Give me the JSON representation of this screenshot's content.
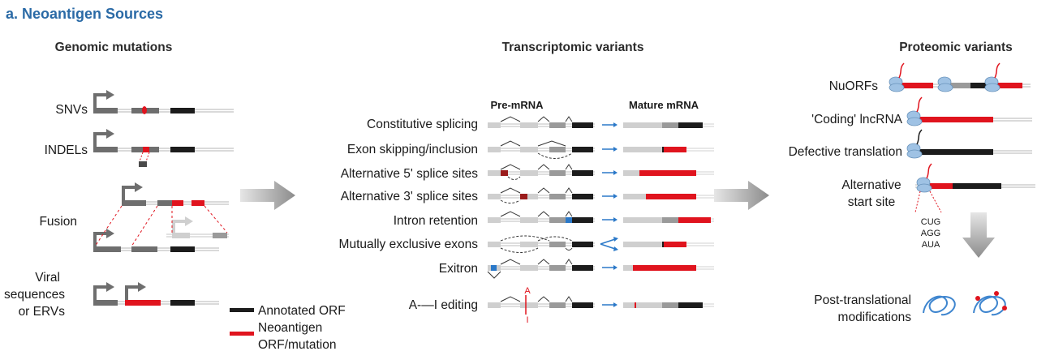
{
  "title": "a. Neoantigen Sources",
  "columns": {
    "genomic": {
      "heading": "Genomic mutations",
      "rows": [
        "SNVs",
        "INDELs",
        "Fusion",
        "Viral",
        "sequences",
        "or ERVs"
      ]
    },
    "transcriptomic": {
      "heading": "Transcriptomic variants",
      "pre_label": "Pre-mRNA",
      "mature_label": "Mature mRNA",
      "rows": [
        "Constitutive splicing",
        "Exon skipping/inclusion",
        "Alternative 5' splice sites",
        "Alternative 3' splice sites",
        "Intron retention",
        "Mutually exclusive exons",
        "Exitron",
        "A-—I editing"
      ],
      "editing_mark_top": "A",
      "editing_mark_bottom": "I"
    },
    "proteomic": {
      "heading": "Proteomic variants",
      "rows": [
        "NuORFs",
        "'Coding' lncRNA",
        "Defective translation",
        "Alternative",
        "start site"
      ],
      "codons": [
        "CUG",
        "AGG",
        "AUA"
      ],
      "ptm_line1": "Post-translational",
      "ptm_line2": "modifications"
    }
  },
  "legend": {
    "annotated": "Annotated ORF",
    "neo_line1": "Neoantigen",
    "neo_line2": "ORF/mutation"
  },
  "colors": {
    "title": "#2a6aa6",
    "annotated": "#1c1c1c",
    "neoantigen": "#e0141e",
    "exon_light": "#cfcfcf",
    "exon_mid": "#9a9a9a",
    "exon_dark": "#6e6e6e",
    "arrow_gray": "#8a8a8a",
    "arrow_blue": "#2a78c8",
    "ribosome": "#9fc2e4",
    "protein_blue": "#3f86cf",
    "exitron_blue": "#2a78c8"
  }
}
